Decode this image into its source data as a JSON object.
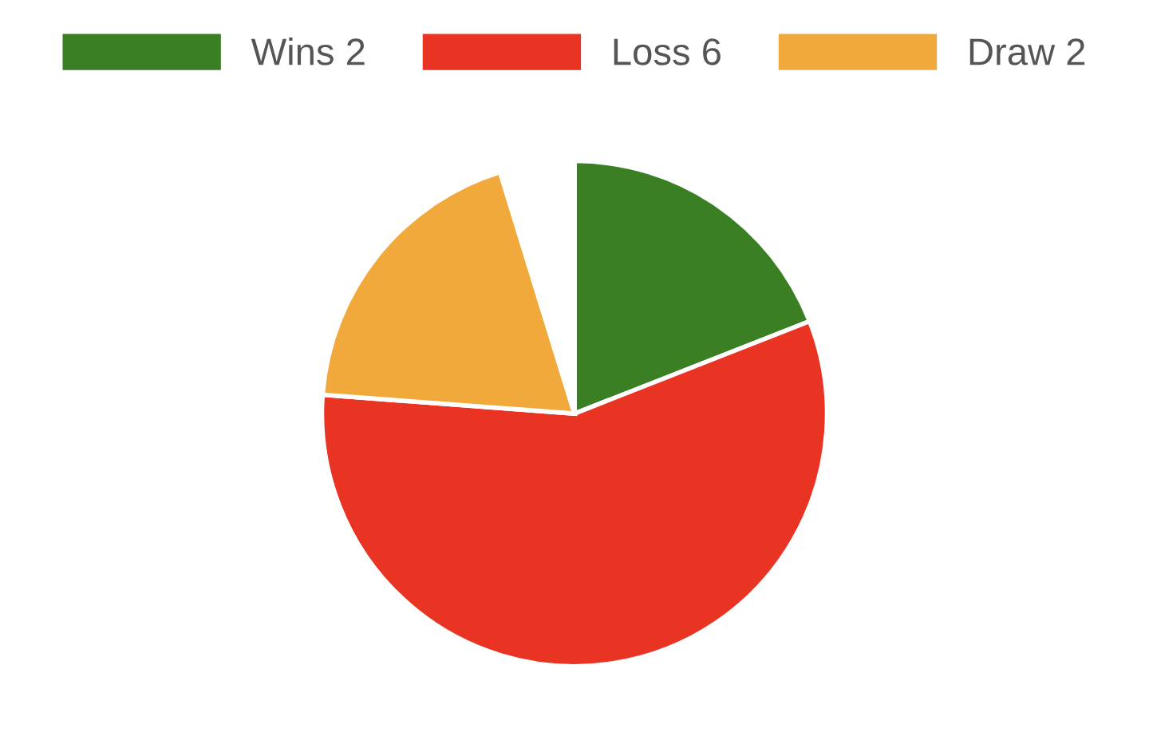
{
  "chart_data": {
    "type": "pie",
    "categories": [
      "Wins 2",
      "Loss 6",
      "Draw 2",
      null
    ],
    "values": [
      2,
      6,
      2,
      0.5
    ],
    "colors": [
      "#3a7f23",
      "#e93323",
      "#f2a93b",
      "#ffffff"
    ],
    "legend": "top"
  }
}
